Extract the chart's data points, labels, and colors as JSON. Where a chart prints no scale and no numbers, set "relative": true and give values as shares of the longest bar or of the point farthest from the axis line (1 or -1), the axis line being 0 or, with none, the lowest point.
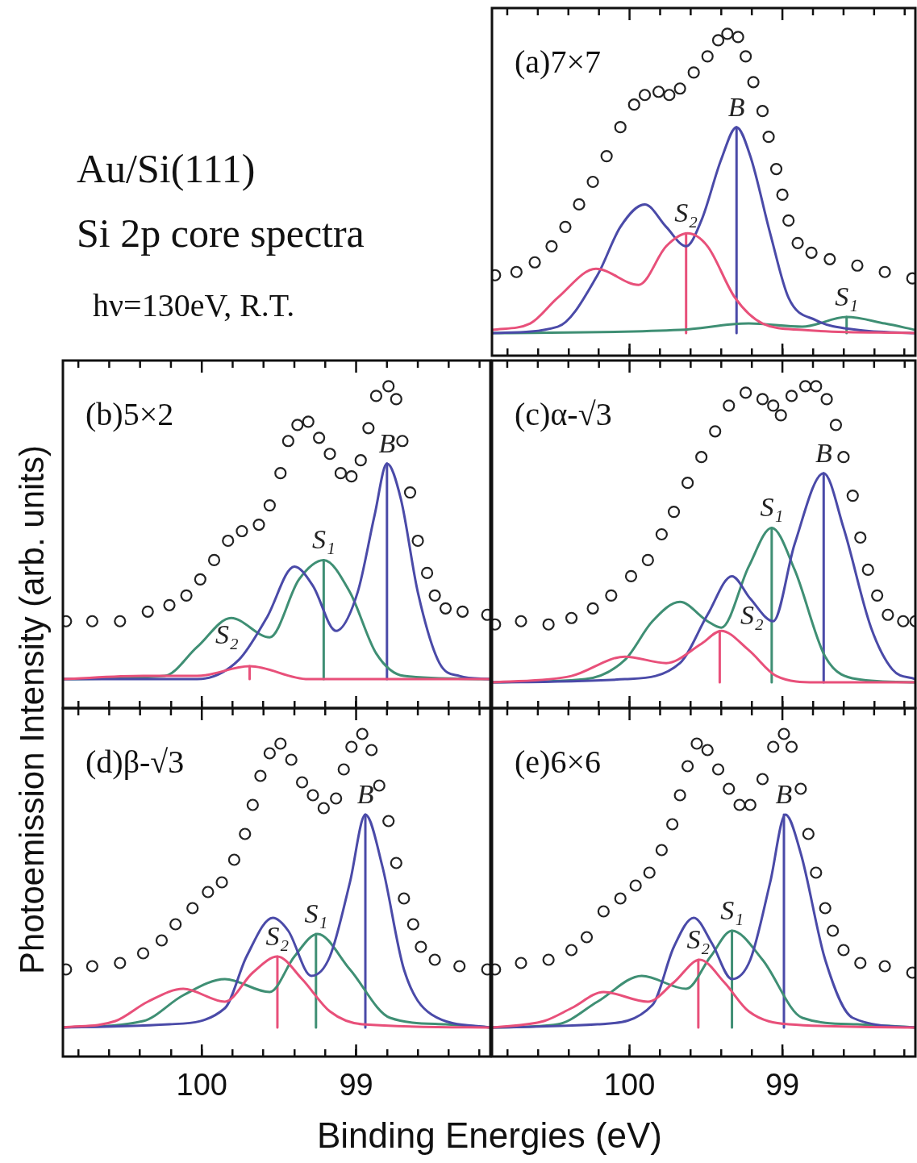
{
  "chart_data": [
    {
      "type": "scatter",
      "title": "(a)7×7",
      "relative": true,
      "xlim": [
        100.9,
        98.13
      ],
      "tick_labels": false,
      "xticks": [
        {
          "value": 100.8,
          "label": null
        },
        {
          "value": 100.6,
          "label": null
        },
        {
          "value": 100.4,
          "label": null
        },
        {
          "value": 100.2,
          "label": null
        },
        {
          "value": 100,
          "label": null
        },
        {
          "value": 99.8,
          "label": null
        },
        {
          "value": 99.6,
          "label": null
        },
        {
          "value": 99.4,
          "label": null
        },
        {
          "value": 99.2,
          "label": null
        },
        {
          "value": 99,
          "label": null
        },
        {
          "value": 98.8,
          "label": null
        },
        {
          "value": 98.6,
          "label": null
        },
        {
          "value": 98.4,
          "label": null
        },
        {
          "value": 98.2,
          "label": null
        }
      ],
      "annotations": [
        "Au/Si(111)",
        "Si 2p core spectra",
        "hν=130eV, R.T.",
        {
          "text": "B",
          "x": 99.3,
          "y": 0.71
        },
        {
          "text": "S₂",
          "x": 99.63,
          "y": 0.38
        },
        {
          "text": "S₁",
          "x": 98.58,
          "y": 0.12
        }
      ],
      "series": [
        {
          "type": "scatter",
          "marker": "circle",
          "color": "#222222",
          "x": [
            100.88,
            100.74,
            100.62,
            100.51,
            100.42,
            100.33,
            100.24,
            100.15,
            100.06,
            99.97,
            99.9,
            99.81,
            99.74,
            99.67,
            99.58,
            99.49,
            99.42,
            99.36,
            99.29,
            99.24,
            99.19,
            99.13,
            99.09,
            99.04,
            99.0,
            98.96,
            98.9,
            98.81,
            98.69,
            98.51,
            98.33,
            98.15
          ],
          "values": [
            0.25,
            0.26,
            0.29,
            0.34,
            0.4,
            0.47,
            0.54,
            0.62,
            0.71,
            0.78,
            0.81,
            0.82,
            0.81,
            0.83,
            0.88,
            0.93,
            0.98,
            1,
            0.99,
            0.93,
            0.85,
            0.76,
            0.68,
            0.58,
            0.5,
            0.42,
            0.35,
            0.32,
            0.3,
            0.28,
            0.26,
            0.24
          ]
        },
        {
          "type": "line",
          "color": "#e8507a",
          "x": [
            100.9,
            100.65,
            100.47,
            100.22,
            99.94,
            99.76,
            99.62,
            99.49,
            99.31,
            99.13,
            98.87,
            98.13
          ],
          "values": [
            0.08,
            0.1,
            0.18,
            0.27,
            0.22,
            0.34,
            0.38,
            0.34,
            0.18,
            0.1,
            0.08,
            0.07
          ]
        },
        {
          "type": "line",
          "color": "#4a4aa8",
          "x": [
            100.9,
            100.47,
            100.21,
            100.06,
            99.9,
            99.76,
            99.63,
            99.53,
            99.4,
            99.3,
            99.21,
            99.08,
            98.96,
            98.78,
            98.51,
            98.13
          ],
          "values": [
            0.07,
            0.09,
            0.25,
            0.4,
            0.47,
            0.4,
            0.34,
            0.42,
            0.61,
            0.71,
            0.62,
            0.38,
            0.18,
            0.11,
            0.08,
            0.07
          ]
        },
        {
          "type": "line",
          "color": "#3f8f74",
          "x": [
            100.9,
            99.67,
            99.22,
            98.87,
            98.58,
            98.33,
            98.13
          ],
          "values": [
            0.07,
            0.08,
            0.1,
            0.09,
            0.12,
            0.1,
            0.08
          ]
        },
        {
          "type": "line",
          "color": "#e8507a",
          "x": [
            99.63,
            99.63
          ],
          "values": [
            0.07,
            0.38
          ]
        },
        {
          "type": "line",
          "color": "#4a4aa8",
          "x": [
            99.3,
            99.3
          ],
          "values": [
            0.07,
            0.71
          ]
        },
        {
          "type": "line",
          "color": "#3f8f74",
          "x": [
            98.58,
            98.58
          ],
          "values": [
            0.07,
            0.12
          ]
        }
      ]
    },
    {
      "type": "scatter",
      "title": "(b)5×2",
      "relative": true,
      "xlim": [
        100.9,
        98.13
      ],
      "tick_labels": false,
      "xticks": [
        {
          "value": 100.8,
          "label": null
        },
        {
          "value": 100.6,
          "label": null
        },
        {
          "value": 100.4,
          "label": null
        },
        {
          "value": 100.2,
          "label": null
        },
        {
          "value": 100,
          "label": null
        },
        {
          "value": 99.8,
          "label": null
        },
        {
          "value": 99.6,
          "label": null
        },
        {
          "value": 99.4,
          "label": null
        },
        {
          "value": 99.2,
          "label": null
        },
        {
          "value": 99,
          "label": null
        },
        {
          "value": 98.8,
          "label": null
        },
        {
          "value": 98.6,
          "label": null
        },
        {
          "value": 98.4,
          "label": null
        },
        {
          "value": 98.2,
          "label": null
        }
      ],
      "annotations": [
        {
          "text": "S₁",
          "x": 99.21,
          "y": 0.46
        },
        {
          "text": "S₂",
          "x": 99.69,
          "y": 0.13
        },
        {
          "text": "B",
          "x": 98.8,
          "y": 0.76
        }
      ],
      "series": [
        {
          "type": "scatter",
          "marker": "circle",
          "color": "#222222",
          "x": [
            100.88,
            100.71,
            100.53,
            100.35,
            100.21,
            100.1,
            100.01,
            99.92,
            99.83,
            99.74,
            99.63,
            99.56,
            99.49,
            99.44,
            99.38,
            99.31,
            99.24,
            99.17,
            99.1,
            99.03,
            98.97,
            98.92,
            98.87,
            98.79,
            98.74,
            98.7,
            98.65,
            98.6,
            98.54,
            98.49,
            98.42,
            98.31,
            98.15
          ],
          "values": [
            0.27,
            0.27,
            0.27,
            0.3,
            0.32,
            0.35,
            0.4,
            0.46,
            0.52,
            0.55,
            0.57,
            0.63,
            0.73,
            0.83,
            0.88,
            0.89,
            0.84,
            0.79,
            0.73,
            0.72,
            0.77,
            0.87,
            0.97,
            1,
            0.96,
            0.83,
            0.67,
            0.52,
            0.42,
            0.35,
            0.31,
            0.3,
            0.29
          ]
        },
        {
          "type": "line",
          "color": "#e8507a",
          "x": [
            100.9,
            100.38,
            100.03,
            99.69,
            99.31,
            98.78,
            98.13
          ],
          "values": [
            0.09,
            0.1,
            0.1,
            0.13,
            0.09,
            0.09,
            0.09
          ]
        },
        {
          "type": "line",
          "color": "#4a4aa8",
          "x": [
            100.9,
            100.03,
            99.76,
            99.58,
            99.4,
            99.28,
            99.13,
            98.99,
            98.88,
            98.8,
            98.71,
            98.6,
            98.46,
            98.33,
            98.13
          ],
          "values": [
            0.09,
            0.09,
            0.15,
            0.28,
            0.44,
            0.38,
            0.24,
            0.36,
            0.6,
            0.76,
            0.65,
            0.36,
            0.14,
            0.1,
            0.09
          ]
        },
        {
          "type": "line",
          "color": "#3f8f74",
          "x": [
            100.9,
            100.24,
            100.03,
            99.81,
            99.56,
            99.37,
            99.21,
            99.04,
            98.87,
            98.69,
            98.13
          ],
          "values": [
            0.09,
            0.1,
            0.19,
            0.28,
            0.22,
            0.4,
            0.46,
            0.36,
            0.17,
            0.1,
            0.09
          ]
        },
        {
          "type": "line",
          "color": "#e8507a",
          "x": [
            99.69,
            99.69
          ],
          "values": [
            0.09,
            0.13
          ]
        },
        {
          "type": "line",
          "color": "#3f8f74",
          "x": [
            99.21,
            99.21
          ],
          "values": [
            0.09,
            0.46
          ]
        },
        {
          "type": "line",
          "color": "#4a4aa8",
          "x": [
            98.8,
            98.8
          ],
          "values": [
            0.09,
            0.76
          ]
        }
      ]
    },
    {
      "type": "scatter",
      "title": "(c)α-√3",
      "relative": true,
      "xlim": [
        100.9,
        98.13
      ],
      "tick_labels": false,
      "xticks": [
        {
          "value": 100.8,
          "label": null
        },
        {
          "value": 100.6,
          "label": null
        },
        {
          "value": 100.4,
          "label": null
        },
        {
          "value": 100.2,
          "label": null
        },
        {
          "value": 100,
          "label": null
        },
        {
          "value": 99.8,
          "label": null
        },
        {
          "value": 99.6,
          "label": null
        },
        {
          "value": 99.4,
          "label": null
        },
        {
          "value": 99.2,
          "label": null
        },
        {
          "value": 99,
          "label": null
        },
        {
          "value": 98.8,
          "label": null
        },
        {
          "value": 98.6,
          "label": null
        },
        {
          "value": 98.4,
          "label": null
        },
        {
          "value": 98.2,
          "label": null
        }
      ],
      "annotations": [
        {
          "text": "S₂",
          "x": 99.41,
          "y": 0.24
        },
        {
          "text": "S₁",
          "x": 99.07,
          "y": 0.56
        },
        {
          "text": "B",
          "x": 98.73,
          "y": 0.73
        }
      ],
      "series": [
        {
          "type": "scatter",
          "marker": "circle",
          "color": "#222222",
          "x": [
            100.88,
            100.71,
            100.53,
            100.38,
            100.24,
            100.12,
            99.99,
            99.88,
            99.79,
            99.71,
            99.62,
            99.53,
            99.44,
            99.35,
            99.24,
            99.13,
            99.06,
            99.01,
            98.94,
            98.85,
            98.78,
            98.71,
            98.65,
            98.6,
            98.54,
            98.49,
            98.44,
            98.38,
            98.31,
            98.21,
            98.13
          ],
          "values": [
            0.26,
            0.27,
            0.26,
            0.28,
            0.31,
            0.35,
            0.41,
            0.46,
            0.54,
            0.61,
            0.7,
            0.78,
            0.86,
            0.94,
            0.98,
            0.96,
            0.94,
            0.91,
            0.97,
            1,
            1,
            0.96,
            0.88,
            0.78,
            0.66,
            0.53,
            0.43,
            0.35,
            0.29,
            0.27,
            0.27
          ]
        },
        {
          "type": "line",
          "color": "#e8507a",
          "x": [
            100.9,
            100.38,
            100.03,
            99.76,
            99.53,
            99.4,
            99.22,
            99.04,
            98.78,
            98.13
          ],
          "values": [
            0.08,
            0.1,
            0.16,
            0.14,
            0.2,
            0.24,
            0.18,
            0.1,
            0.08,
            0.08
          ]
        },
        {
          "type": "line",
          "color": "#4a4aa8",
          "x": [
            100.9,
            100.03,
            99.67,
            99.49,
            99.33,
            99.21,
            99.06,
            98.92,
            98.73,
            98.6,
            98.42,
            98.28,
            98.13
          ],
          "values": [
            0.08,
            0.09,
            0.14,
            0.29,
            0.41,
            0.34,
            0.27,
            0.51,
            0.73,
            0.56,
            0.25,
            0.12,
            0.09
          ]
        },
        {
          "type": "line",
          "color": "#3f8f74",
          "x": [
            100.9,
            100.29,
            100.03,
            99.85,
            99.67,
            99.49,
            99.4,
            99.22,
            99.07,
            98.92,
            98.72,
            98.51,
            98.13
          ],
          "values": [
            0.08,
            0.09,
            0.15,
            0.27,
            0.33,
            0.27,
            0.25,
            0.44,
            0.56,
            0.43,
            0.16,
            0.09,
            0.08
          ]
        },
        {
          "type": "line",
          "color": "#e8507a",
          "x": [
            99.41,
            99.41
          ],
          "values": [
            0.08,
            0.24
          ]
        },
        {
          "type": "line",
          "color": "#3f8f74",
          "x": [
            99.07,
            99.07
          ],
          "values": [
            0.08,
            0.56
          ]
        },
        {
          "type": "line",
          "color": "#4a4aa8",
          "x": [
            98.73,
            98.73
          ],
          "values": [
            0.08,
            0.73
          ]
        }
      ]
    },
    {
      "type": "scatter",
      "title": "(d)β-√3",
      "relative": true,
      "xlim": [
        100.9,
        98.13
      ],
      "tick_labels": "x",
      "xlabel": "Binding Energies (eV)",
      "ylabel": "Photoemission Intensity (arb. units)",
      "xticks": [
        {
          "value": 100.8,
          "label": null
        },
        {
          "value": 100.6,
          "label": null
        },
        {
          "value": 100.4,
          "label": null
        },
        {
          "value": 100.2,
          "label": null
        },
        {
          "value": 100,
          "label": "100"
        },
        {
          "value": 99.8,
          "label": null
        },
        {
          "value": 99.6,
          "label": null
        },
        {
          "value": 99.4,
          "label": null
        },
        {
          "value": 99.2,
          "label": null
        },
        {
          "value": 99,
          "label": "99"
        },
        {
          "value": 98.8,
          "label": null
        },
        {
          "value": 98.6,
          "label": null
        },
        {
          "value": 98.4,
          "label": null
        },
        {
          "value": 98.2,
          "label": null
        }
      ],
      "annotations": [
        {
          "text": "S₂",
          "x": 99.51,
          "y": 0.31
        },
        {
          "text": "S₁",
          "x": 99.26,
          "y": 0.38
        },
        {
          "text": "B",
          "x": 98.94,
          "y": 0.75
        }
      ],
      "series": [
        {
          "type": "scatter",
          "marker": "circle",
          "color": "#222222",
          "x": [
            100.88,
            100.71,
            100.53,
            100.38,
            100.26,
            100.17,
            100.06,
            99.96,
            99.87,
            99.79,
            99.72,
            99.67,
            99.62,
            99.56,
            99.49,
            99.42,
            99.35,
            99.28,
            99.21,
            99.13,
            99.08,
            99.03,
            98.96,
            98.9,
            98.85,
            98.79,
            98.74,
            98.69,
            98.63,
            98.58,
            98.49,
            98.33,
            98.15
          ],
          "values": [
            0.27,
            0.28,
            0.29,
            0.32,
            0.36,
            0.41,
            0.46,
            0.51,
            0.54,
            0.61,
            0.69,
            0.78,
            0.87,
            0.94,
            0.97,
            0.92,
            0.85,
            0.81,
            0.77,
            0.8,
            0.89,
            0.96,
            1,
            0.95,
            0.84,
            0.73,
            0.6,
            0.49,
            0.41,
            0.34,
            0.3,
            0.28,
            0.27
          ]
        },
        {
          "type": "line",
          "color": "#e8507a",
          "x": [
            100.9,
            100.56,
            100.35,
            100.12,
            99.85,
            99.67,
            99.51,
            99.35,
            99.17,
            98.96,
            98.13
          ],
          "values": [
            0.09,
            0.11,
            0.17,
            0.21,
            0.17,
            0.26,
            0.31,
            0.24,
            0.14,
            0.1,
            0.09
          ]
        },
        {
          "type": "line",
          "color": "#4a4aa8",
          "x": [
            100.9,
            100.21,
            99.85,
            99.71,
            99.54,
            99.44,
            99.29,
            99.17,
            99.04,
            98.94,
            98.83,
            98.69,
            98.51,
            98.13
          ],
          "values": [
            0.09,
            0.1,
            0.15,
            0.31,
            0.43,
            0.39,
            0.25,
            0.31,
            0.54,
            0.75,
            0.59,
            0.27,
            0.13,
            0.09
          ]
        },
        {
          "type": "line",
          "color": "#3f8f74",
          "x": [
            100.9,
            100.38,
            100.12,
            99.85,
            99.56,
            99.4,
            99.25,
            99.04,
            98.78,
            98.42,
            98.13
          ],
          "values": [
            0.09,
            0.11,
            0.19,
            0.24,
            0.2,
            0.31,
            0.38,
            0.27,
            0.12,
            0.1,
            0.09
          ]
        },
        {
          "type": "line",
          "color": "#e8507a",
          "x": [
            99.51,
            99.51
          ],
          "values": [
            0.09,
            0.31
          ]
        },
        {
          "type": "line",
          "color": "#3f8f74",
          "x": [
            99.26,
            99.26
          ],
          "values": [
            0.09,
            0.38
          ]
        },
        {
          "type": "line",
          "color": "#4a4aa8",
          "x": [
            98.94,
            98.94
          ],
          "values": [
            0.09,
            0.75
          ]
        }
      ]
    },
    {
      "type": "scatter",
      "title": "(e)6×6",
      "relative": true,
      "xlim": [
        100.9,
        98.13
      ],
      "tick_labels": "x",
      "xticks": [
        {
          "value": 100.8,
          "label": null
        },
        {
          "value": 100.6,
          "label": null
        },
        {
          "value": 100.4,
          "label": null
        },
        {
          "value": 100.2,
          "label": null
        },
        {
          "value": 100,
          "label": "100"
        },
        {
          "value": 99.8,
          "label": null
        },
        {
          "value": 99.6,
          "label": null
        },
        {
          "value": 99.4,
          "label": null
        },
        {
          "value": 99.2,
          "label": null
        },
        {
          "value": 99,
          "label": "99"
        },
        {
          "value": 98.8,
          "label": null
        },
        {
          "value": 98.6,
          "label": null
        },
        {
          "value": 98.4,
          "label": null
        },
        {
          "value": 98.2,
          "label": null
        }
      ],
      "annotations": [
        {
          "text": "S₂",
          "x": 99.55,
          "y": 0.3
        },
        {
          "text": "S₁",
          "x": 99.33,
          "y": 0.39
        },
        {
          "text": "B",
          "x": 98.99,
          "y": 0.75
        }
      ],
      "series": [
        {
          "type": "scatter",
          "marker": "circle",
          "color": "#222222",
          "x": [
            100.88,
            100.71,
            100.53,
            100.38,
            100.28,
            100.17,
            100.06,
            99.96,
            99.87,
            99.79,
            99.72,
            99.67,
            99.62,
            99.56,
            99.49,
            99.42,
            99.35,
            99.28,
            99.21,
            99.13,
            99.06,
            98.99,
            98.94,
            98.88,
            98.83,
            98.78,
            98.72,
            98.67,
            98.6,
            98.49,
            98.33,
            98.15
          ],
          "values": [
            0.27,
            0.29,
            0.3,
            0.33,
            0.37,
            0.45,
            0.49,
            0.53,
            0.57,
            0.64,
            0.72,
            0.81,
            0.9,
            0.97,
            0.95,
            0.89,
            0.83,
            0.78,
            0.78,
            0.86,
            0.96,
            1,
            0.96,
            0.83,
            0.69,
            0.57,
            0.46,
            0.39,
            0.33,
            0.29,
            0.28,
            0.26
          ]
        },
        {
          "type": "line",
          "color": "#e8507a",
          "x": [
            100.9,
            100.56,
            100.38,
            100.17,
            99.88,
            99.71,
            99.54,
            99.38,
            99.22,
            98.96,
            98.13
          ],
          "values": [
            0.09,
            0.11,
            0.15,
            0.2,
            0.17,
            0.23,
            0.3,
            0.23,
            0.14,
            0.1,
            0.09
          ]
        },
        {
          "type": "line",
          "color": "#4a4aa8",
          "x": [
            100.9,
            100.21,
            99.85,
            99.71,
            99.58,
            99.46,
            99.33,
            99.21,
            99.08,
            98.98,
            98.88,
            98.72,
            98.54,
            98.13
          ],
          "values": [
            0.09,
            0.1,
            0.16,
            0.34,
            0.43,
            0.35,
            0.24,
            0.3,
            0.54,
            0.75,
            0.63,
            0.3,
            0.12,
            0.09
          ]
        },
        {
          "type": "line",
          "color": "#3f8f74",
          "x": [
            100.9,
            100.47,
            100.21,
            99.92,
            99.63,
            99.47,
            99.33,
            99.13,
            98.87,
            98.51,
            98.13
          ],
          "values": [
            0.09,
            0.1,
            0.17,
            0.25,
            0.21,
            0.31,
            0.39,
            0.3,
            0.12,
            0.1,
            0.09
          ]
        },
        {
          "type": "line",
          "color": "#e8507a",
          "x": [
            99.55,
            99.55
          ],
          "values": [
            0.09,
            0.3
          ]
        },
        {
          "type": "line",
          "color": "#3f8f74",
          "x": [
            99.33,
            99.33
          ],
          "values": [
            0.09,
            0.39
          ]
        },
        {
          "type": "line",
          "color": "#4a4aa8",
          "x": [
            98.99,
            98.99
          ],
          "values": [
            0.09,
            0.75
          ]
        }
      ]
    }
  ]
}
